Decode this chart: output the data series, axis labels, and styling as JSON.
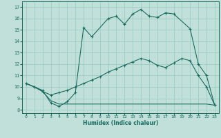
{
  "xlabel": "Humidex (Indice chaleur)",
  "bg_color": "#c2e0da",
  "grid_color": "#96c8c0",
  "line_color": "#1a6b60",
  "xlim": [
    -0.5,
    23.5
  ],
  "ylim": [
    7.7,
    17.5
  ],
  "xticks": [
    0,
    1,
    2,
    3,
    4,
    5,
    6,
    7,
    8,
    9,
    10,
    11,
    12,
    13,
    14,
    15,
    16,
    17,
    18,
    19,
    20,
    21,
    22,
    23
  ],
  "yticks": [
    8,
    9,
    10,
    11,
    12,
    13,
    14,
    15,
    16,
    17
  ],
  "line1_x": [
    0,
    1,
    2,
    3,
    4,
    5,
    6,
    7,
    8,
    10,
    11,
    12,
    13,
    14,
    15,
    16,
    17,
    18,
    20,
    21,
    22,
    23
  ],
  "line1_y": [
    10.3,
    10.0,
    9.7,
    8.6,
    8.3,
    8.7,
    9.5,
    15.2,
    14.4,
    16.0,
    16.2,
    15.5,
    16.4,
    16.8,
    16.2,
    16.1,
    16.5,
    16.4,
    15.1,
    12.0,
    11.0,
    8.4
  ],
  "line2_x": [
    0,
    1,
    2,
    3,
    4,
    5,
    6,
    7,
    8,
    9,
    10,
    11,
    12,
    13,
    14,
    15,
    16,
    17,
    18,
    19,
    20,
    21,
    22,
    23
  ],
  "line2_y": [
    10.3,
    10.0,
    9.6,
    9.3,
    9.5,
    9.7,
    10.0,
    10.3,
    10.6,
    10.9,
    11.3,
    11.6,
    11.9,
    12.2,
    12.5,
    12.3,
    11.9,
    11.7,
    12.1,
    12.5,
    12.3,
    11.0,
    10.0,
    8.4
  ],
  "line3_x": [
    0,
    1,
    2,
    3,
    4,
    5,
    6,
    7,
    8,
    9,
    10,
    11,
    12,
    13,
    14,
    15,
    16,
    17,
    18,
    19,
    20,
    21,
    22,
    23
  ],
  "line3_y": [
    10.3,
    10.0,
    9.6,
    8.8,
    8.5,
    8.5,
    8.5,
    8.5,
    8.5,
    8.5,
    8.5,
    8.5,
    8.5,
    8.5,
    8.5,
    8.5,
    8.5,
    8.5,
    8.5,
    8.5,
    8.5,
    8.5,
    8.5,
    8.4
  ]
}
